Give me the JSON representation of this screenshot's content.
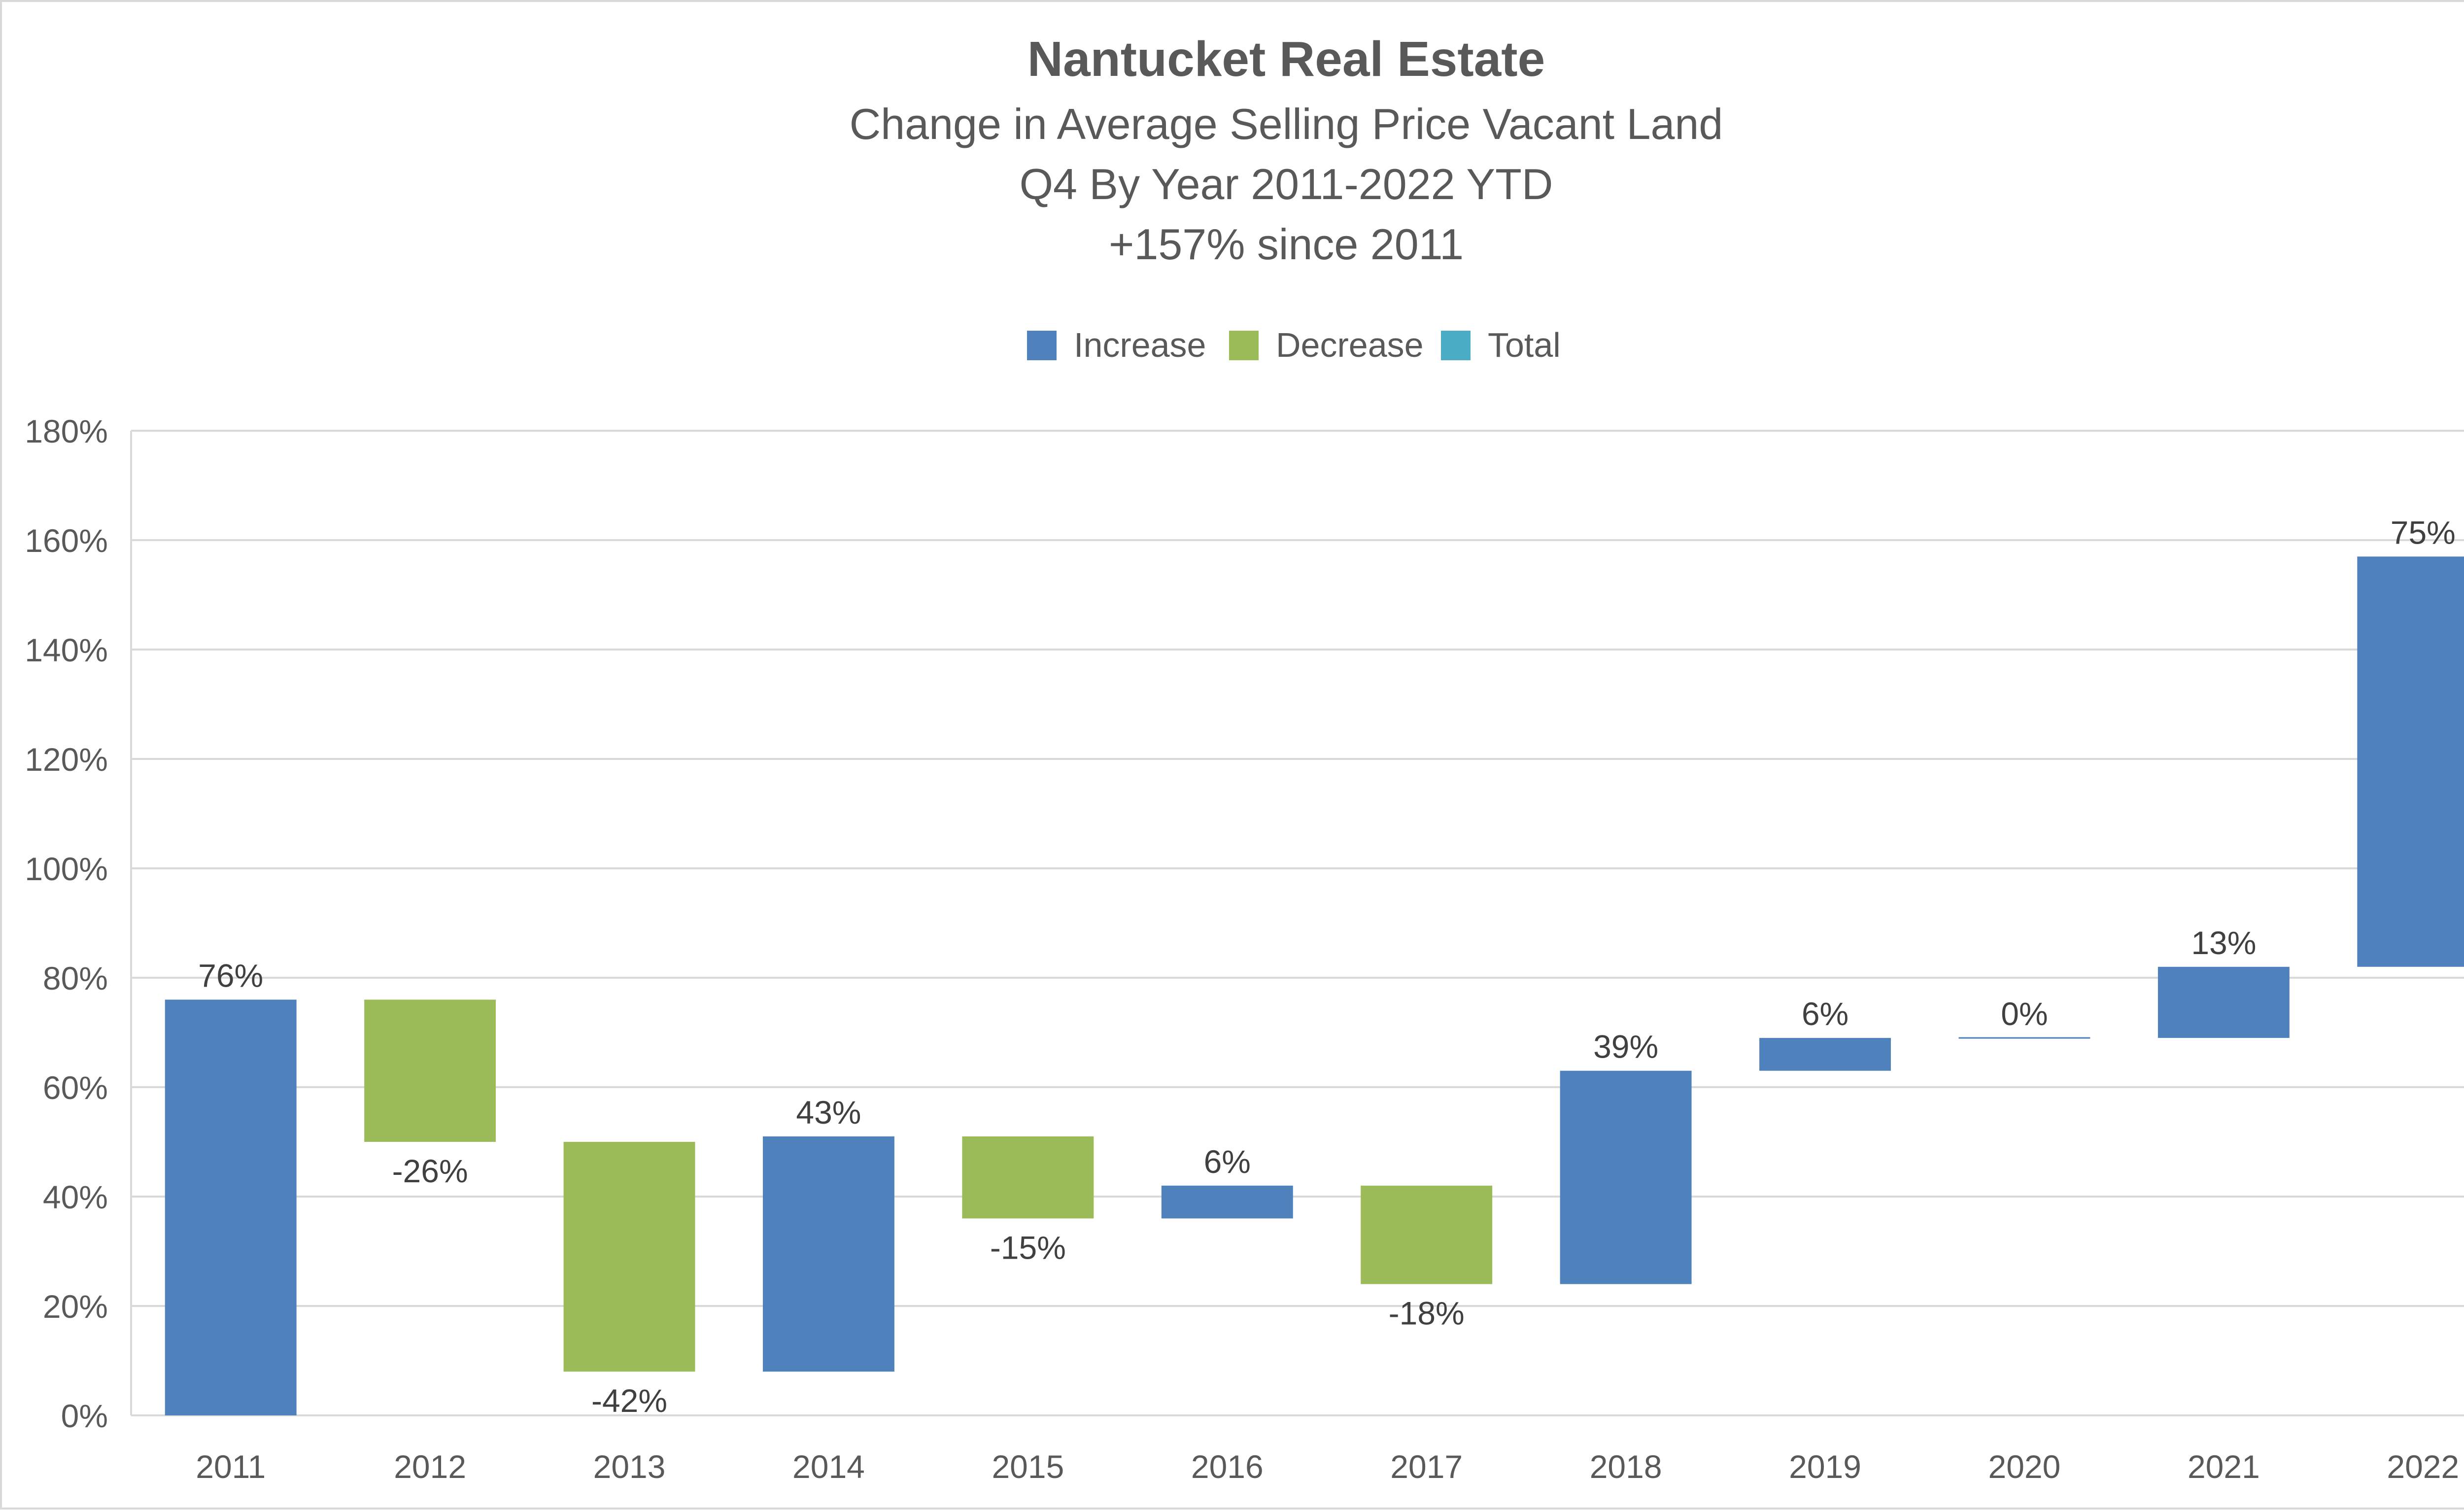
{
  "chart_data": {
    "type": "waterfall",
    "title": "Nantucket Real Estate",
    "subtitle_lines": [
      "Change in Average Selling Price Vacant Land",
      "Q4 By Year 2011-2022 YTD",
      "+157% since 2011"
    ],
    "legend": {
      "position": "top-center",
      "items": [
        {
          "name": "Increase",
          "color": "#4F81BD"
        },
        {
          "name": "Decrease",
          "color": "#9BBB59"
        },
        {
          "name": "Total",
          "color": "#4BACC6"
        }
      ]
    },
    "categories": [
      "2011",
      "2012",
      "2013",
      "2014",
      "2015",
      "2016",
      "2017",
      "2018",
      "2019",
      "2020",
      "2021",
      "2022"
    ],
    "values": [
      76,
      -26,
      -42,
      43,
      -15,
      6,
      -18,
      39,
      6,
      0,
      13,
      75
    ],
    "data_labels": [
      "76%",
      "-26%",
      "-42%",
      "43%",
      "-15%",
      "6%",
      "-18%",
      "39%",
      "6%",
      "0%",
      "13%",
      "75%"
    ],
    "ylim": [
      0,
      180
    ],
    "yticks": [
      0,
      20,
      40,
      60,
      80,
      100,
      120,
      140,
      160,
      180
    ],
    "ytick_labels": [
      "0%",
      "20%",
      "40%",
      "60%",
      "80%",
      "100%",
      "120%",
      "140%",
      "160%",
      "180%"
    ],
    "grid": true,
    "xlabel": "",
    "ylabel": ""
  }
}
